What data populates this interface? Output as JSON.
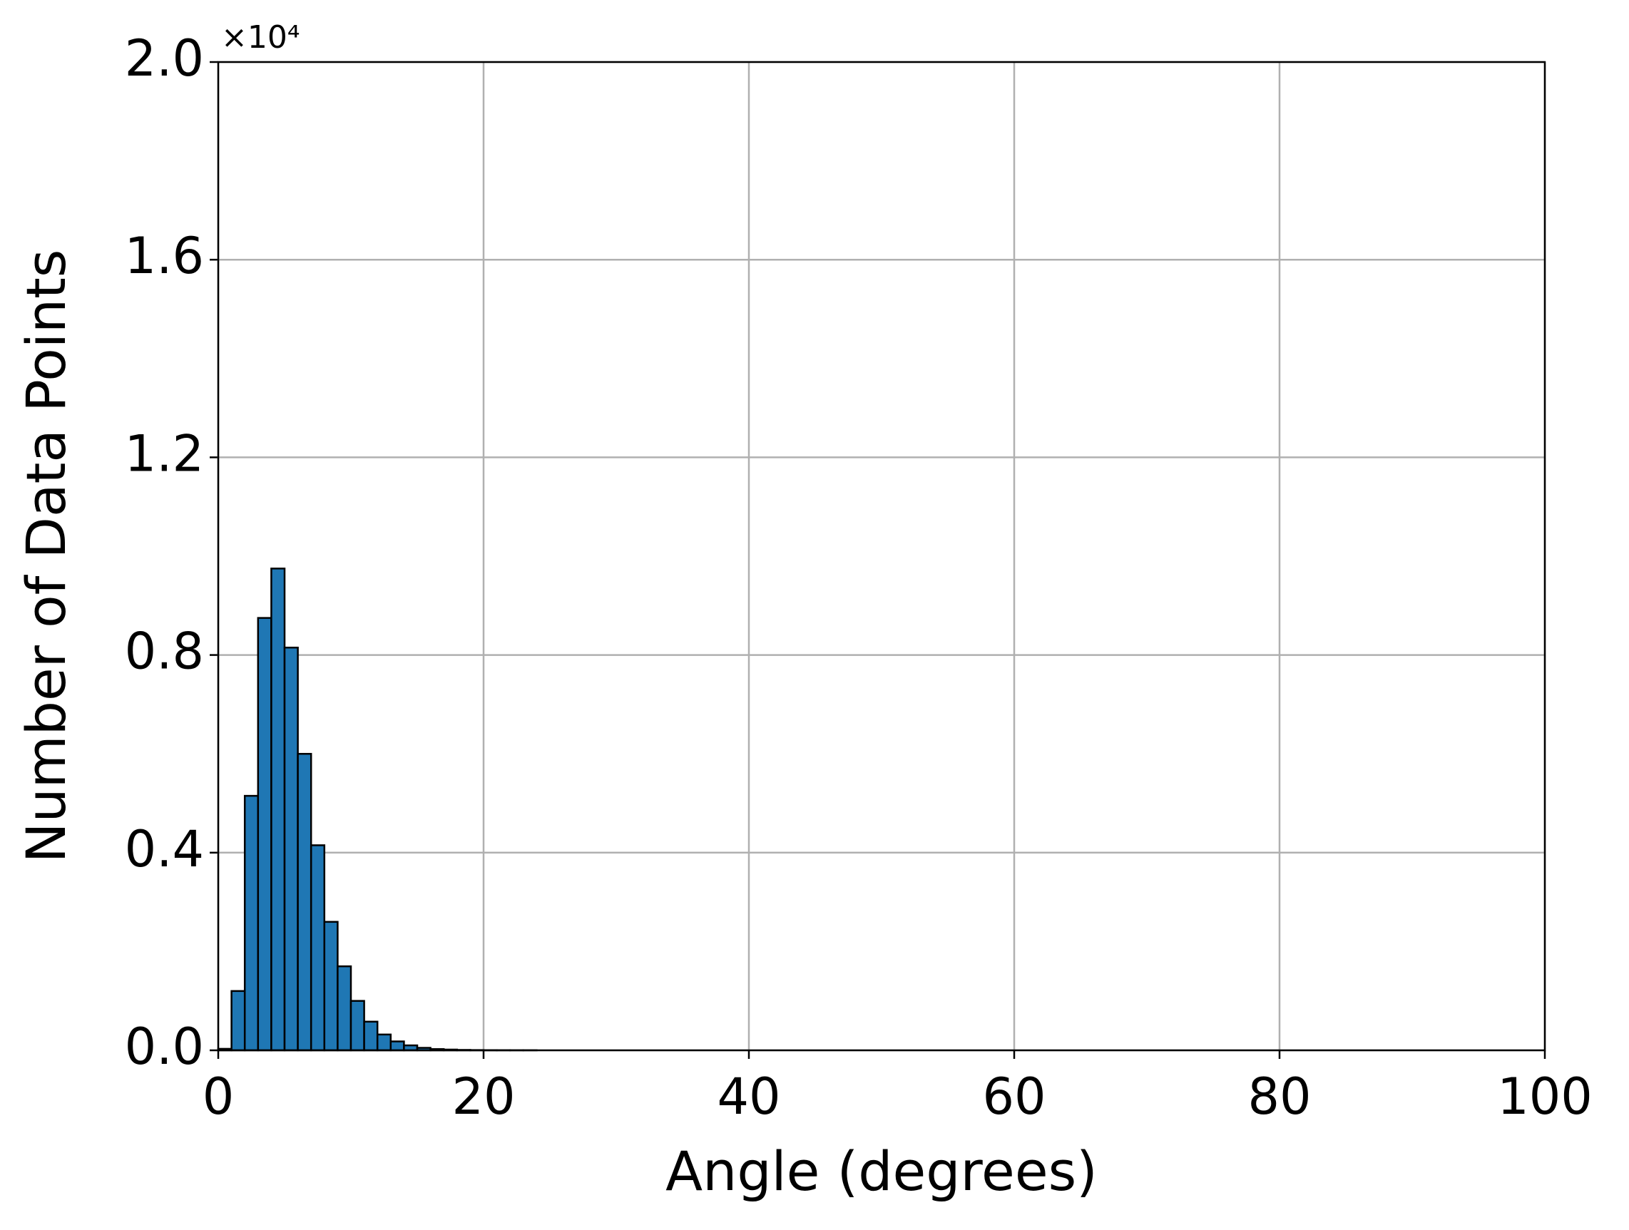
{
  "chart_data": {
    "type": "histogram",
    "xlabel": "Angle (degrees)",
    "ylabel": "Number of Data Points",
    "y_offset_label": "×10⁴",
    "bins": [
      0,
      1,
      2,
      3,
      4,
      5,
      6,
      7,
      8,
      9,
      10,
      11,
      12,
      13,
      14,
      15,
      16,
      17,
      18,
      19,
      20,
      21,
      22,
      23,
      24,
      25,
      26,
      27,
      28,
      29,
      30,
      31,
      32,
      33,
      34,
      35,
      36,
      37,
      38,
      39,
      40,
      41,
      42,
      43,
      44,
      45,
      46,
      47,
      48,
      49,
      50,
      51,
      52,
      53,
      54,
      55,
      56,
      57,
      58,
      59,
      60,
      61,
      62,
      63,
      64,
      65,
      66,
      67,
      68,
      69,
      70,
      71,
      72,
      73,
      74,
      75,
      76,
      77,
      78,
      79,
      80,
      81,
      82,
      83,
      84,
      85,
      86,
      87,
      88,
      89,
      90,
      91,
      92,
      93,
      94,
      95,
      96,
      97,
      98,
      99,
      100
    ],
    "counts": [
      30,
      1200,
      5150,
      8750,
      9750,
      8150,
      6000,
      4150,
      2600,
      1700,
      1000,
      580,
      320,
      180,
      100,
      50,
      25,
      15,
      8,
      5,
      3,
      2,
      1,
      1,
      0,
      0,
      0,
      0,
      0,
      0,
      0,
      0,
      0,
      0,
      0,
      0,
      0,
      0,
      0,
      0,
      0,
      0,
      0,
      0,
      0,
      0,
      0,
      0,
      0,
      0,
      0,
      0,
      0,
      0,
      0,
      0,
      0,
      0,
      0,
      0,
      0,
      0,
      0,
      0,
      0,
      0,
      0,
      0,
      0,
      0,
      0,
      0,
      0,
      0,
      0,
      0,
      0,
      0,
      0,
      0,
      0,
      0,
      0,
      0,
      0,
      0,
      0,
      0,
      0,
      0,
      0,
      0,
      0,
      0,
      0,
      0,
      0,
      0,
      0,
      0
    ],
    "color": "#1f77b4",
    "edgecolor": "#000000",
    "xlim": [
      0,
      100
    ],
    "xticks": [
      0,
      20,
      40,
      60,
      80,
      100
    ],
    "ylim": [
      0,
      20000
    ],
    "yticks": [
      {
        "value": 0,
        "label": "0.0"
      },
      {
        "value": 4000,
        "label": "0.4"
      },
      {
        "value": 8000,
        "label": "0.8"
      },
      {
        "value": 12000,
        "label": "1.2"
      },
      {
        "value": 16000,
        "label": "1.6"
      },
      {
        "value": 20000,
        "label": "2.0"
      }
    ],
    "grid": true
  }
}
